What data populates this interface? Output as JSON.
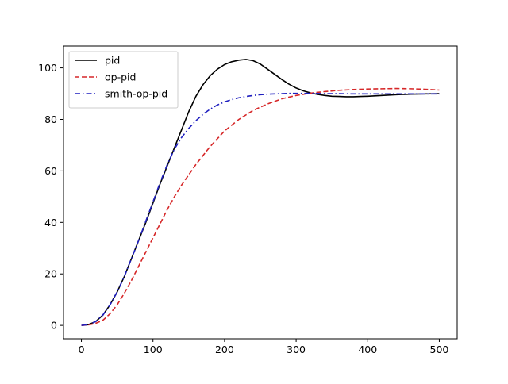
{
  "chart_data": {
    "type": "line",
    "title": "",
    "xlabel": "",
    "ylabel": "",
    "xlim": [
      -25,
      525
    ],
    "ylim": [
      -5.2,
      108.5
    ],
    "xticks": [
      0,
      100,
      200,
      300,
      400,
      500
    ],
    "yticks": [
      0,
      20,
      40,
      60,
      80,
      100
    ],
    "grid": false,
    "legend": {
      "position": "upper-left",
      "entries": [
        "pid",
        "op-pid",
        "smith-op-pid"
      ]
    },
    "series": [
      {
        "name": "pid",
        "color": "#000000",
        "style": "solid",
        "x": [
          0,
          10,
          20,
          30,
          40,
          50,
          60,
          70,
          80,
          90,
          100,
          110,
          120,
          130,
          140,
          150,
          160,
          170,
          180,
          190,
          200,
          210,
          220,
          230,
          240,
          250,
          260,
          270,
          280,
          290,
          300,
          310,
          320,
          330,
          340,
          350,
          360,
          370,
          380,
          390,
          400,
          420,
          440,
          460,
          480,
          500
        ],
        "y": [
          0,
          0.3,
          1.5,
          4,
          8,
          13,
          19,
          26,
          33,
          40,
          47.5,
          55,
          62,
          69,
          76,
          83,
          89,
          93.5,
          97,
          99.5,
          101.3,
          102.4,
          103,
          103.3,
          102.8,
          101.5,
          99.5,
          97.5,
          95.5,
          93.7,
          92.2,
          91.1,
          90.3,
          89.7,
          89.3,
          89,
          88.9,
          88.8,
          88.8,
          88.9,
          89,
          89.3,
          89.6,
          89.8,
          89.9,
          90
        ]
      },
      {
        "name": "op-pid",
        "color": "#d62728",
        "style": "dashed",
        "x": [
          0,
          10,
          20,
          30,
          40,
          50,
          60,
          70,
          80,
          90,
          100,
          110,
          120,
          130,
          140,
          150,
          160,
          170,
          180,
          190,
          200,
          220,
          240,
          260,
          280,
          300,
          320,
          340,
          360,
          380,
          400,
          420,
          440,
          460,
          480,
          500
        ],
        "y": [
          0,
          0.2,
          0.8,
          2,
          4.5,
          8,
          12.5,
          17.5,
          23,
          28.5,
          34,
          39.5,
          45,
          50,
          54.5,
          58.5,
          62.5,
          66,
          69.5,
          72.5,
          75.5,
          80,
          83.5,
          86,
          88,
          89.3,
          90.2,
          90.8,
          91.3,
          91.6,
          91.8,
          91.9,
          92,
          91.9,
          91.7,
          91.4
        ]
      },
      {
        "name": "smith-op-pid",
        "color": "#1f1fbf",
        "style": "dashdot",
        "x": [
          0,
          10,
          20,
          30,
          40,
          50,
          60,
          70,
          80,
          90,
          100,
          110,
          120,
          130,
          140,
          150,
          160,
          170,
          180,
          190,
          200,
          210,
          220,
          230,
          240,
          250,
          260,
          270,
          280,
          290,
          300,
          320,
          340,
          360,
          380,
          400,
          420,
          440,
          460,
          480,
          500
        ],
        "y": [
          0,
          0.3,
          1.5,
          4,
          8,
          13,
          19,
          26,
          33,
          40.5,
          48,
          55.5,
          62.5,
          68.5,
          73,
          76.5,
          79.5,
          82,
          84,
          85.6,
          86.8,
          87.7,
          88.4,
          88.9,
          89.3,
          89.6,
          89.8,
          89.9,
          90,
          90.1,
          90.1,
          90.1,
          90,
          90,
          89.9,
          89.9,
          89.9,
          89.9,
          89.9,
          89.9,
          89.9
        ]
      }
    ]
  }
}
